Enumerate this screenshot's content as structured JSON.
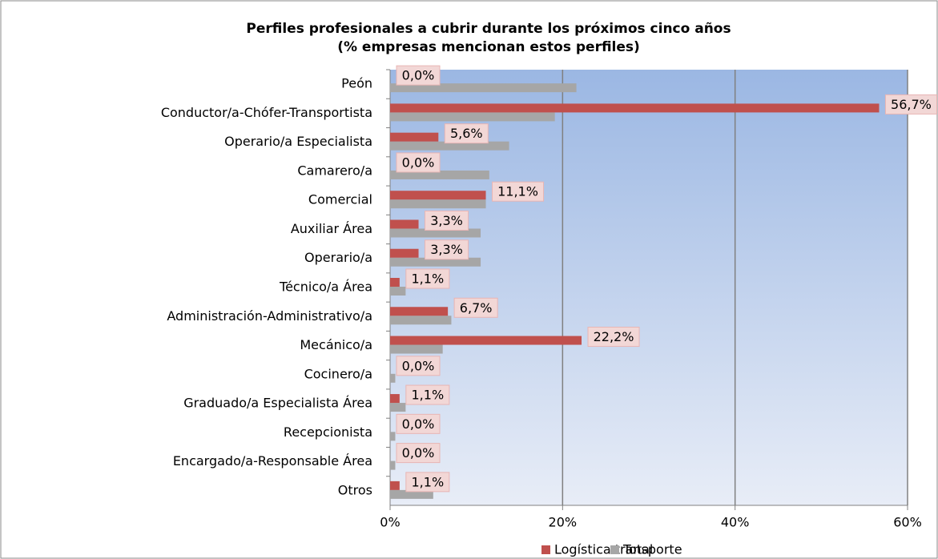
{
  "chart_data": {
    "type": "bar",
    "orientation": "horizontal",
    "title": "Perfiles profesionales a cubrir durante los próximos cinco años",
    "subtitle": "(% empresas mencionan estos perfiles)",
    "categories": [
      "Peón",
      "Conductor/a-Chófer-Transportista",
      "Operario/a Especialista",
      "Camarero/a",
      "Comercial",
      "Auxiliar Área",
      "Operario/a",
      "Técnico/a Área",
      "Administración-Administrativo/a",
      "Mecánico/a",
      "Cocinero/a",
      "Graduado/a Especialista Área",
      "Recepcionista",
      "Encargado/a-Responsable Área",
      "Otros"
    ],
    "series": [
      {
        "name": "Logística transporte",
        "color": "#c0504d",
        "values": [
          0,
          56.7,
          5.6,
          0,
          11.1,
          3.3,
          3.3,
          1.1,
          6.7,
          22.2,
          0,
          1.1,
          0,
          0,
          1.1
        ],
        "value_labels": [
          "0,0%",
          "56,7%",
          "5,6%",
          "0,0%",
          "11,1%",
          "3,3%",
          "3,3%",
          "1,1%",
          "6,7%",
          "22,2%",
          "0,0%",
          "1,1%",
          "0,0%",
          "0,0%",
          "1,1%"
        ]
      },
      {
        "name": "Total",
        "color": "#a6a6a6",
        "values": [
          21.6,
          19.1,
          13.8,
          11.5,
          11.1,
          10.5,
          10.5,
          1.8,
          7.1,
          6.1,
          0.6,
          1.8,
          0.6,
          0.6,
          5.0
        ]
      }
    ],
    "xlim": [
      0,
      60
    ],
    "xticks": [
      {
        "value": 0,
        "label": "0%"
      },
      {
        "value": 20,
        "label": "20%"
      },
      {
        "value": 40,
        "label": "40%"
      },
      {
        "value": 60,
        "label": "60%"
      }
    ],
    "grid": true,
    "legend": "bottom"
  }
}
